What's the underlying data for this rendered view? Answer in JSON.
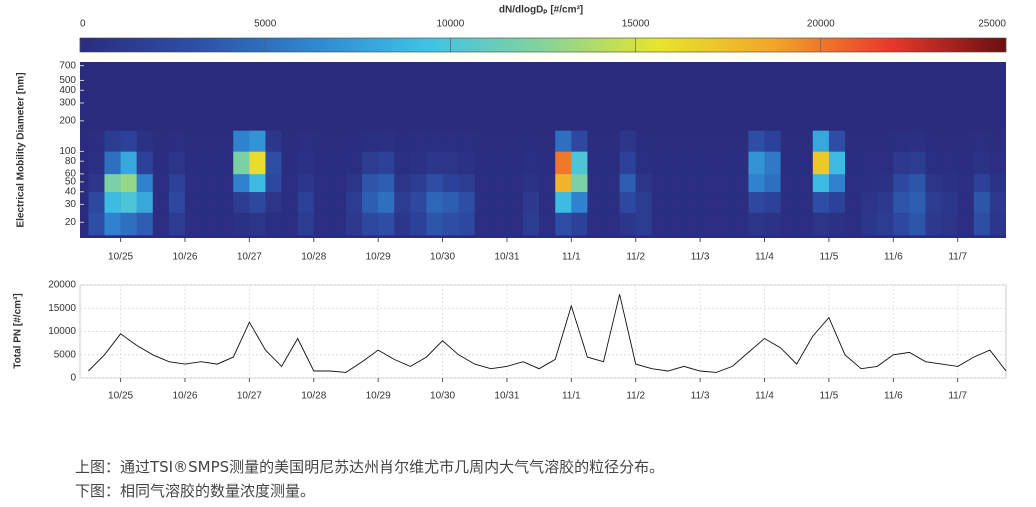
{
  "chart_data": [
    {
      "type": "heatmap",
      "colorbar_label": "dN/dlogDₚ [#/cm³]",
      "clim": [
        0,
        25000
      ],
      "cticks": [
        0,
        5000,
        10000,
        15000,
        20000,
        25000
      ],
      "colormap": [
        "#2b2c7e",
        "#2d4fa6",
        "#2f86d0",
        "#3fc2e6",
        "#86d39b",
        "#e6e52c",
        "#f3a42a",
        "#e8392a",
        "#6b0f12"
      ],
      "ylabel": "Electrical Mobility Diameter [nm]",
      "log_y": true,
      "ylim": [
        14,
        760
      ],
      "yticks": [
        20,
        30,
        40,
        50,
        60,
        80,
        100,
        200,
        300,
        400,
        500,
        700
      ],
      "xlim": [
        24.37,
        38.75
      ],
      "xticks": [
        {
          "value": 25,
          "label": "10/25"
        },
        {
          "value": 26,
          "label": "10/26"
        },
        {
          "value": 27,
          "label": "10/27"
        },
        {
          "value": 28,
          "label": "10/28"
        },
        {
          "value": 29,
          "label": "10/29"
        },
        {
          "value": 30,
          "label": "10/30"
        },
        {
          "value": 31,
          "label": "10/31"
        },
        {
          "value": 32,
          "label": "11/1"
        },
        {
          "value": 33,
          "label": "11/2"
        },
        {
          "value": 34,
          "label": "11/3"
        },
        {
          "value": 35,
          "label": "11/4"
        },
        {
          "value": 36,
          "label": "11/5"
        },
        {
          "value": 37,
          "label": "11/6"
        },
        {
          "value": 38,
          "label": "11/7"
        }
      ],
      "xbins": [
        24.5,
        24.75,
        25,
        25.25,
        25.5,
        25.75,
        26,
        26.25,
        26.5,
        26.75,
        27,
        27.25,
        27.5,
        27.75,
        28,
        28.25,
        28.5,
        28.75,
        29,
        29.25,
        29.5,
        29.75,
        30,
        30.25,
        30.5,
        30.75,
        31,
        31.25,
        31.5,
        31.75,
        32,
        32.25,
        32.5,
        32.75,
        33,
        33.25,
        33.5,
        33.75,
        34,
        34.25,
        34.5,
        34.75,
        35,
        35.25,
        35.5,
        35.75,
        36,
        36.25,
        36.5,
        36.75,
        37,
        37.25,
        37.5,
        37.75,
        38,
        38.25,
        38.5,
        38.75
      ],
      "ybins": [
        15,
        25,
        40,
        60,
        100,
        160
      ],
      "z": [
        [
          3000,
          2500,
          1000,
          400,
          200
        ],
        [
          6000,
          9000,
          12000,
          5000,
          1500
        ],
        [
          5000,
          10000,
          13000,
          8000,
          2000
        ],
        [
          4000,
          8000,
          6000,
          2000,
          500
        ],
        [
          200,
          200,
          200,
          150,
          100
        ],
        [
          1500,
          2500,
          2000,
          800,
          200
        ],
        [
          200,
          200,
          200,
          150,
          100
        ],
        [
          200,
          200,
          200,
          150,
          100
        ],
        [
          200,
          200,
          200,
          150,
          100
        ],
        [
          500,
          1500,
          6000,
          12000,
          6000
        ],
        [
          800,
          2500,
          9000,
          16000,
          7000
        ],
        [
          300,
          800,
          2500,
          3000,
          1000
        ],
        [
          200,
          200,
          200,
          150,
          100
        ],
        [
          1500,
          2000,
          1000,
          500,
          200
        ],
        [
          200,
          200,
          200,
          150,
          100
        ],
        [
          200,
          200,
          200,
          150,
          100
        ],
        [
          1200,
          1500,
          800,
          300,
          150
        ],
        [
          2500,
          4000,
          3500,
          1500,
          300
        ],
        [
          3000,
          5000,
          4000,
          2000,
          400
        ],
        [
          1000,
          1500,
          800,
          300,
          150
        ],
        [
          2000,
          2500,
          1500,
          500,
          200
        ],
        [
          3500,
          4500,
          3000,
          1000,
          300
        ],
        [
          3000,
          4000,
          2000,
          800,
          200
        ],
        [
          2500,
          3000,
          1500,
          500,
          200
        ],
        [
          200,
          200,
          200,
          150,
          100
        ],
        [
          200,
          200,
          200,
          150,
          100
        ],
        [
          200,
          200,
          200,
          150,
          100
        ],
        [
          1500,
          1200,
          600,
          300,
          150
        ],
        [
          200,
          200,
          200,
          150,
          100
        ],
        [
          3000,
          9000,
          18000,
          20000,
          5000
        ],
        [
          2000,
          6000,
          12000,
          10000,
          2500
        ],
        [
          200,
          200,
          200,
          150,
          100
        ],
        [
          200,
          200,
          200,
          150,
          100
        ],
        [
          1000,
          2500,
          4000,
          2000,
          1000
        ],
        [
          1500,
          1500,
          800,
          300,
          150
        ],
        [
          200,
          200,
          200,
          150,
          100
        ],
        [
          200,
          200,
          200,
          150,
          100
        ],
        [
          200,
          200,
          200,
          150,
          100
        ],
        [
          200,
          200,
          200,
          150,
          100
        ],
        [
          200,
          200,
          200,
          150,
          100
        ],
        [
          200,
          200,
          200,
          150,
          100
        ],
        [
          800,
          2500,
          6000,
          7000,
          3000
        ],
        [
          600,
          2000,
          5000,
          5500,
          2000
        ],
        [
          200,
          200,
          200,
          150,
          100
        ],
        [
          200,
          200,
          200,
          150,
          100
        ],
        [
          800,
          3000,
          9000,
          17000,
          8000
        ],
        [
          500,
          2000,
          6000,
          9000,
          3000
        ],
        [
          200,
          200,
          200,
          150,
          100
        ],
        [
          1000,
          800,
          400,
          200,
          100
        ],
        [
          1500,
          1200,
          500,
          200,
          100
        ],
        [
          2500,
          3500,
          2500,
          1200,
          300
        ],
        [
          3500,
          4000,
          3500,
          1500,
          400
        ],
        [
          1200,
          1500,
          800,
          300,
          150
        ],
        [
          800,
          1000,
          500,
          200,
          100
        ],
        [
          200,
          200,
          200,
          150,
          100
        ],
        [
          3000,
          3500,
          2000,
          600,
          200
        ],
        [
          1000,
          1200,
          600,
          200,
          100
        ]
      ]
    },
    {
      "type": "line",
      "ylabel": "Total PN [#/cm³]",
      "color": "#111111",
      "grid": true,
      "xlim": [
        24.37,
        38.75
      ],
      "xticks": [
        {
          "value": 25,
          "label": "10/25"
        },
        {
          "value": 26,
          "label": "10/26"
        },
        {
          "value": 27,
          "label": "10/27"
        },
        {
          "value": 28,
          "label": "10/28"
        },
        {
          "value": 29,
          "label": "10/29"
        },
        {
          "value": 30,
          "label": "10/30"
        },
        {
          "value": 31,
          "label": "10/31"
        },
        {
          "value": 32,
          "label": "11/1"
        },
        {
          "value": 33,
          "label": "11/2"
        },
        {
          "value": 34,
          "label": "11/3"
        },
        {
          "value": 35,
          "label": "11/4"
        },
        {
          "value": 36,
          "label": "11/5"
        },
        {
          "value": 37,
          "label": "11/6"
        },
        {
          "value": 38,
          "label": "11/7"
        }
      ],
      "ylim": [
        0,
        20000
      ],
      "yticks": [
        0,
        5000,
        10000,
        15000,
        20000
      ],
      "x": [
        24.5,
        24.75,
        25,
        25.25,
        25.5,
        25.75,
        26,
        26.25,
        26.5,
        26.75,
        27,
        27.25,
        27.5,
        27.75,
        28,
        28.25,
        28.5,
        28.75,
        29,
        29.25,
        29.5,
        29.75,
        30,
        30.25,
        30.5,
        30.75,
        31,
        31.25,
        31.5,
        31.75,
        32,
        32.25,
        32.5,
        32.75,
        33,
        33.25,
        33.5,
        33.75,
        34,
        34.25,
        34.5,
        34.75,
        35,
        35.25,
        35.5,
        35.75,
        36,
        36.25,
        36.5,
        36.75,
        37,
        37.25,
        37.5,
        37.75,
        38,
        38.25,
        38.5,
        38.75
      ],
      "values": [
        1500,
        5000,
        9500,
        7000,
        5000,
        3500,
        3000,
        3500,
        3000,
        4500,
        12000,
        6000,
        2500,
        8500,
        1500,
        1500,
        1200,
        3500,
        6000,
        4000,
        2500,
        4500,
        8000,
        5000,
        3000,
        2000,
        2500,
        3500,
        2000,
        4000,
        15500,
        4500,
        3500,
        18000,
        3000,
        2000,
        1500,
        2500,
        1500,
        1200,
        2500,
        5500,
        8500,
        6500,
        3000,
        9000,
        13000,
        5000,
        2000,
        2500,
        5000,
        5500,
        3500,
        3000,
        2500,
        4500,
        6000,
        1500
      ]
    }
  ],
  "captions": [
    "上图：通过TSI®SMPS测量的美国明尼苏达州肖尔维尤市几周内大气气溶胶的粒径分布。",
    "下图：相同气溶胶的数量浓度测量。"
  ]
}
